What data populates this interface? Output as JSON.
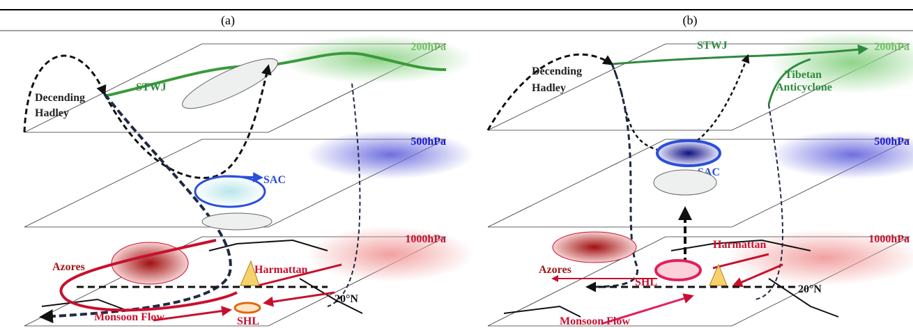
{
  "panels": [
    {
      "label": "(a)",
      "levels": [
        "200hPa",
        "500hPa",
        "1000hPa"
      ],
      "jet": "STWJ",
      "hadley": [
        "Decending",
        "Hadley"
      ],
      "sac": "SAC",
      "azores": "Azores",
      "harmattan": "Harmattan",
      "latitude": "20°N",
      "monsoon": "Monsoon Flow",
      "shl": "SHL"
    },
    {
      "label": "(b)",
      "levels": [
        "200hPa",
        "500hPa",
        "1000hPa"
      ],
      "jet": "STWJ",
      "hadley": [
        "Decending",
        "Hadley"
      ],
      "tibetan": [
        "Tibetan",
        "Anticyclone"
      ],
      "sac": "SAC",
      "azores": "Azores",
      "harmattan": "Harmattan",
      "latitude": "20°N",
      "monsoon": "Monsoon Flow",
      "shl": "SHL"
    }
  ]
}
